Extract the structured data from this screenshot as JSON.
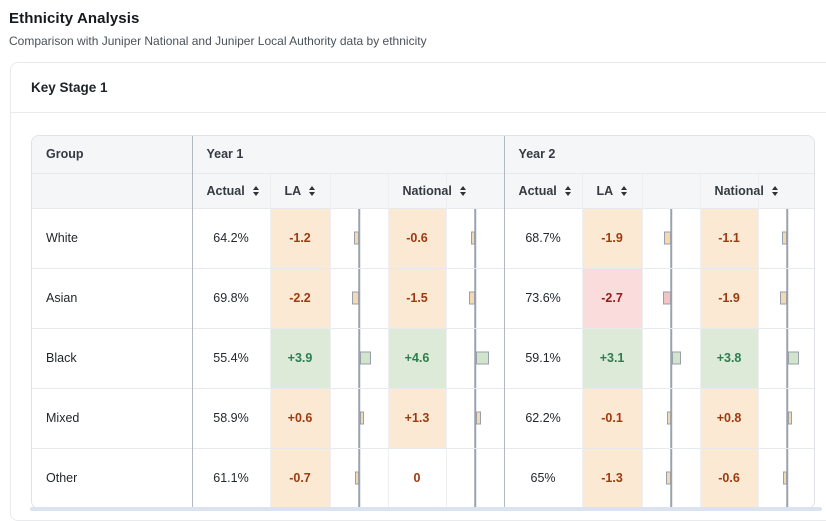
{
  "page": {
    "title": "Ethnicity Analysis",
    "subtitle": "Comparison with Juniper National and Juniper Local Authority data by ethnicity"
  },
  "card": {
    "title": "Key Stage 1"
  },
  "table": {
    "group_header": "Group",
    "year_headers": [
      "Year 1",
      "Year 2"
    ],
    "sub_headers": [
      "Actual",
      "LA",
      "National"
    ],
    "rows": [
      {
        "group": "White",
        "year1": {
          "actual": "64.2%",
          "la": {
            "text": "-1.2",
            "value": -1.2,
            "color": "orange"
          },
          "national": {
            "text": "-0.6",
            "value": -0.6,
            "color": "orange"
          }
        },
        "year2": {
          "actual": "68.7%",
          "la": {
            "text": "-1.9",
            "value": -1.9,
            "color": "orange"
          },
          "national": {
            "text": "-1.1",
            "value": -1.1,
            "color": "orange"
          }
        }
      },
      {
        "group": "Asian",
        "year1": {
          "actual": "69.8%",
          "la": {
            "text": "-2.2",
            "value": -2.2,
            "color": "orange"
          },
          "national": {
            "text": "-1.5",
            "value": -1.5,
            "color": "orange"
          }
        },
        "year2": {
          "actual": "73.6%",
          "la": {
            "text": "-2.7",
            "value": -2.7,
            "color": "pink"
          },
          "national": {
            "text": "-1.9",
            "value": -1.9,
            "color": "orange"
          }
        }
      },
      {
        "group": "Black",
        "year1": {
          "actual": "55.4%",
          "la": {
            "text": "+3.9",
            "value": 3.9,
            "color": "green"
          },
          "national": {
            "text": "+4.6",
            "value": 4.6,
            "color": "green"
          }
        },
        "year2": {
          "actual": "59.1%",
          "la": {
            "text": "+3.1",
            "value": 3.1,
            "color": "green"
          },
          "national": {
            "text": "+3.8",
            "value": 3.8,
            "color": "green"
          }
        }
      },
      {
        "group": "Mixed",
        "year1": {
          "actual": "58.9%",
          "la": {
            "text": "+0.6",
            "value": 0.6,
            "color": "orange"
          },
          "national": {
            "text": "+1.3",
            "value": 1.3,
            "color": "orange"
          }
        },
        "year2": {
          "actual": "62.2%",
          "la": {
            "text": "-0.1",
            "value": -0.1,
            "color": "orange"
          },
          "national": {
            "text": "+0.8",
            "value": 0.8,
            "color": "orange"
          }
        }
      },
      {
        "group": "Other",
        "year1": {
          "actual": "61.1%",
          "la": {
            "text": "-0.7",
            "value": -0.7,
            "color": "orange"
          },
          "national": {
            "text": "0",
            "value": 0,
            "color": "plain"
          }
        },
        "year2": {
          "actual": "65%",
          "la": {
            "text": "-1.3",
            "value": -1.3,
            "color": "orange"
          },
          "national": {
            "text": "-0.6",
            "value": -0.6,
            "color": "orange"
          }
        }
      }
    ]
  },
  "colors": {
    "chip_orange_bg": "#fbe9d4",
    "chip_orange_text": "#9e3a10",
    "chip_green_bg": "#dcead7",
    "chip_green_text": "#2e7d4f",
    "chip_pink_bg": "#fadcdc",
    "chip_pink_text": "#8f1d1d",
    "bar_border": "#98a0ac",
    "divider_dark": "#b3b9c2",
    "scrollbar": "#dbe3f0"
  },
  "icons": {
    "sort": "sort-arrows-icon"
  }
}
